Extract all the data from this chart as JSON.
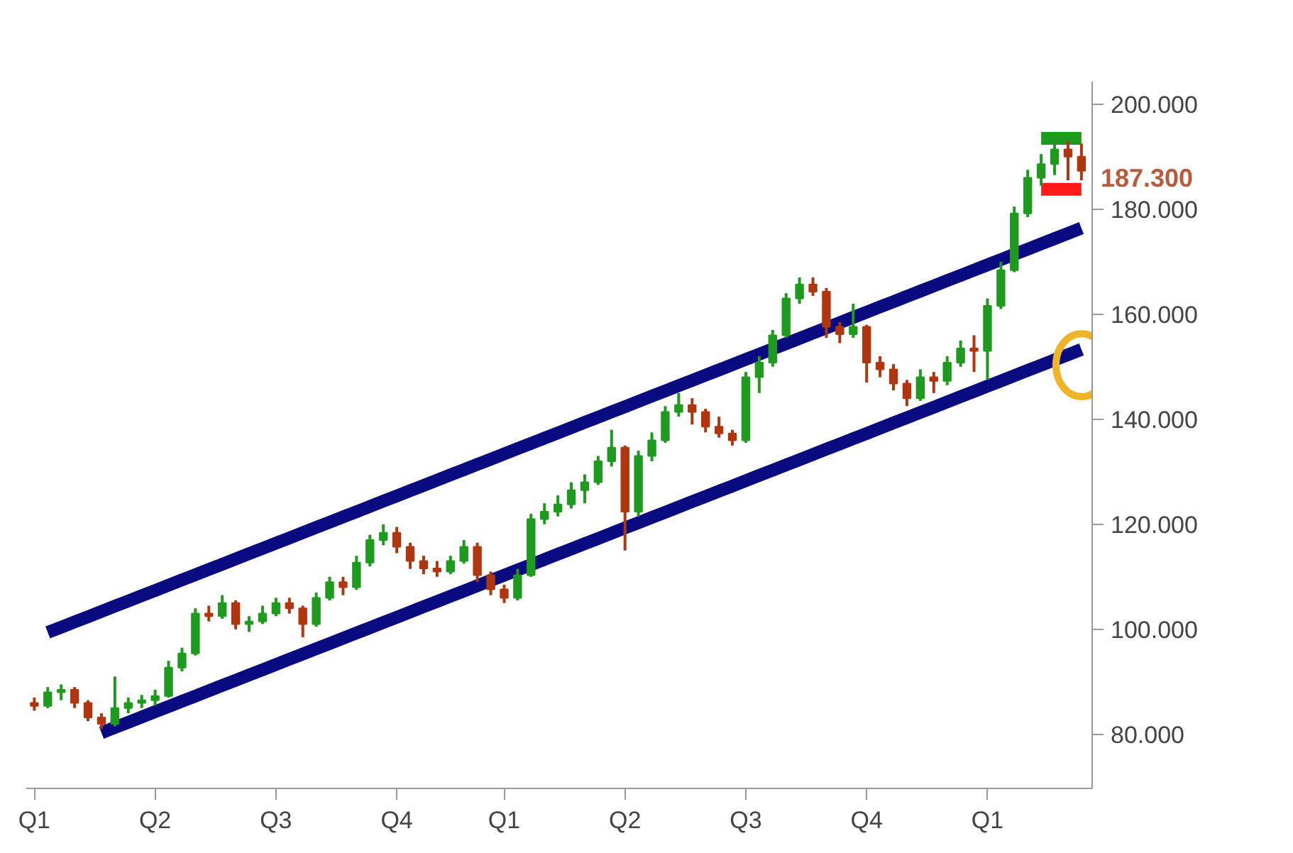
{
  "chart_data": {
    "type": "candlestick",
    "categories": [
      "Q1",
      null,
      null,
      null,
      null,
      null,
      null,
      null,
      null,
      "Q2",
      null,
      null,
      null,
      null,
      null,
      null,
      null,
      null,
      "Q3",
      null,
      null,
      null,
      null,
      null,
      null,
      null,
      null,
      "Q4",
      null,
      null,
      null,
      null,
      null,
      null,
      null,
      "Q1",
      null,
      null,
      null,
      null,
      null,
      null,
      null,
      null,
      "Q2",
      null,
      null,
      null,
      null,
      null,
      null,
      null,
      null,
      "Q3",
      null,
      null,
      null,
      null,
      null,
      null,
      null,
      null,
      "Q4",
      null,
      null,
      null,
      null,
      null,
      null,
      null,
      null,
      "Q1",
      null,
      null,
      null,
      null,
      null,
      null,
      null
    ],
    "ohlc": [
      [
        86.0,
        87.0,
        84.5,
        85.4
      ],
      [
        85.4,
        89.0,
        85.0,
        88.0
      ],
      [
        88.0,
        89.5,
        86.5,
        88.5
      ],
      [
        88.5,
        89.0,
        85.0,
        86.0
      ],
      [
        86.0,
        86.5,
        82.5,
        83.2
      ],
      [
        83.2,
        84.0,
        81.0,
        82.0
      ],
      [
        82.0,
        91.0,
        81.5,
        85.0
      ],
      [
        85.0,
        87.0,
        84.0,
        86.0
      ],
      [
        86.0,
        87.5,
        85.0,
        86.5
      ],
      [
        86.5,
        88.5,
        85.5,
        87.3
      ],
      [
        87.3,
        94.0,
        87.0,
        92.7
      ],
      [
        92.7,
        96.5,
        92.0,
        95.4
      ],
      [
        95.4,
        104.0,
        95.0,
        103.0
      ],
      [
        103.0,
        104.5,
        101.5,
        102.5
      ],
      [
        102.5,
        106.5,
        102.0,
        105.0
      ],
      [
        105.0,
        105.5,
        100.0,
        101.0
      ],
      [
        101.0,
        102.5,
        99.5,
        101.5
      ],
      [
        101.5,
        104.5,
        101.0,
        103.0
      ],
      [
        103.0,
        106.0,
        102.5,
        105.0
      ],
      [
        105.0,
        106.0,
        103.0,
        104.0
      ],
      [
        104.0,
        104.5,
        98.5,
        101.0
      ],
      [
        101.0,
        107.0,
        100.5,
        106.0
      ],
      [
        106.0,
        110.0,
        105.5,
        109.0
      ],
      [
        109.0,
        110.0,
        106.5,
        108.0
      ],
      [
        108.0,
        114.0,
        107.5,
        112.7
      ],
      [
        112.7,
        118.0,
        112.0,
        117.0
      ],
      [
        117.0,
        120.0,
        116.0,
        118.4
      ],
      [
        118.4,
        119.5,
        114.5,
        115.7
      ],
      [
        115.7,
        116.5,
        111.5,
        113.0
      ],
      [
        113.0,
        114.0,
        110.5,
        111.6
      ],
      [
        111.6,
        113.0,
        110.0,
        111.0
      ],
      [
        111.0,
        114.0,
        110.5,
        113.0
      ],
      [
        113.0,
        117.0,
        112.5,
        115.7
      ],
      [
        115.7,
        116.5,
        109.0,
        110.3
      ],
      [
        110.3,
        111.0,
        106.5,
        107.6
      ],
      [
        107.6,
        108.5,
        105.0,
        106.0
      ],
      [
        106.0,
        111.5,
        105.5,
        110.3
      ],
      [
        110.3,
        122.0,
        110.0,
        121.0
      ],
      [
        121.0,
        124.0,
        120.0,
        122.4
      ],
      [
        122.4,
        125.5,
        121.5,
        123.8
      ],
      [
        123.8,
        128.0,
        123.0,
        126.5
      ],
      [
        126.5,
        129.5,
        124.0,
        128.0
      ],
      [
        128.0,
        133.0,
        127.5,
        132.0
      ],
      [
        132.0,
        138.0,
        131.0,
        134.6
      ],
      [
        134.6,
        135.0,
        115.0,
        122.4
      ],
      [
        122.4,
        134.0,
        121.5,
        133.0
      ],
      [
        133.0,
        137.5,
        132.0,
        136.0
      ],
      [
        136.0,
        142.5,
        135.5,
        141.4
      ],
      [
        141.4,
        145.0,
        140.5,
        142.7
      ],
      [
        142.7,
        144.0,
        139.0,
        141.4
      ],
      [
        141.4,
        142.0,
        137.5,
        138.6
      ],
      [
        138.6,
        140.5,
        136.5,
        137.3
      ],
      [
        137.3,
        138.0,
        135.0,
        136.0
      ],
      [
        136.0,
        149.0,
        135.5,
        148.0
      ],
      [
        148.0,
        152.0,
        145.0,
        150.8
      ],
      [
        150.8,
        157.0,
        150.0,
        156.0
      ],
      [
        156.0,
        164.0,
        155.5,
        163.0
      ],
      [
        163.0,
        167.0,
        162.0,
        165.7
      ],
      [
        165.7,
        167.0,
        163.5,
        164.3
      ],
      [
        164.3,
        165.0,
        155.5,
        157.6
      ],
      [
        157.6,
        158.5,
        154.5,
        156.2
      ],
      [
        156.2,
        162.0,
        155.5,
        157.6
      ],
      [
        157.6,
        158.0,
        147.0,
        150.8
      ],
      [
        150.8,
        152.0,
        148.0,
        149.5
      ],
      [
        149.5,
        150.5,
        145.5,
        146.8
      ],
      [
        146.8,
        147.5,
        142.5,
        144.0
      ],
      [
        144.0,
        149.5,
        143.5,
        148.0
      ],
      [
        148.0,
        149.0,
        145.0,
        147.3
      ],
      [
        147.3,
        152.0,
        146.5,
        150.8
      ],
      [
        150.8,
        155.0,
        150.0,
        153.5
      ],
      [
        153.5,
        156.0,
        149.0,
        153.0
      ],
      [
        153.0,
        163.0,
        147.5,
        161.6
      ],
      [
        161.6,
        170.0,
        161.0,
        168.4
      ],
      [
        168.4,
        180.5,
        168.0,
        179.2
      ],
      [
        179.2,
        187.5,
        178.5,
        186.0
      ],
      [
        186.0,
        190.5,
        184.5,
        188.6
      ],
      [
        188.6,
        193.0,
        186.5,
        191.4
      ],
      [
        191.4,
        193.0,
        185.5,
        190.0
      ],
      [
        190.0,
        192.5,
        185.5,
        187.3
      ]
    ],
    "colors": [
      "#b0360f",
      "#1e9b1e",
      "#1e9b1e",
      "#b0360f",
      "#b0360f",
      "#b0360f",
      "#1e9b1e",
      "#1e9b1e",
      "#1e9b1e",
      "#1e9b1e",
      "#1e9b1e",
      "#1e9b1e",
      "#1e9b1e",
      "#b0360f",
      "#1e9b1e",
      "#b0360f",
      "#1e9b1e",
      "#1e9b1e",
      "#1e9b1e",
      "#b0360f",
      "#b0360f",
      "#1e9b1e",
      "#1e9b1e",
      "#b0360f",
      "#1e9b1e",
      "#1e9b1e",
      "#1e9b1e",
      "#b0360f",
      "#b0360f",
      "#b0360f",
      "#b0360f",
      "#1e9b1e",
      "#1e9b1e",
      "#b0360f",
      "#b0360f",
      "#b0360f",
      "#1e9b1e",
      "#1e9b1e",
      "#1e9b1e",
      "#1e9b1e",
      "#1e9b1e",
      "#1e9b1e",
      "#1e9b1e",
      "#1e9b1e",
      "#b0360f",
      "#1e9b1e",
      "#1e9b1e",
      "#1e9b1e",
      "#1e9b1e",
      "#b0360f",
      "#b0360f",
      "#b0360f",
      "#b0360f",
      "#1e9b1e",
      "#1e9b1e",
      "#1e9b1e",
      "#1e9b1e",
      "#1e9b1e",
      "#b0360f",
      "#b0360f",
      "#b0360f",
      "#1e9b1e",
      "#b0360f",
      "#b0360f",
      "#b0360f",
      "#b0360f",
      "#1e9b1e",
      "#b0360f",
      "#1e9b1e",
      "#1e9b1e",
      "#b0360f",
      "#1e9b1e",
      "#1e9b1e",
      "#1e9b1e",
      "#1e9b1e",
      "#1e9b1e",
      "#1e9b1e",
      "#b0360f",
      "#b0360f"
    ],
    "series": [
      {
        "type": "line",
        "color": "#0a0a80",
        "values": [
          null,
          99.4,
          100.4,
          101.4,
          102.4,
          103.4,
          104.4,
          105.4,
          106.4,
          107.4,
          108.4,
          109.4,
          110.4,
          111.4,
          112.4,
          113.4,
          114.4,
          115.4,
          116.4,
          117.4,
          118.4,
          119.4,
          120.4,
          121.4,
          122.4,
          123.4,
          124.4,
          125.4,
          126.4,
          127.4,
          128.4,
          129.4,
          130.4,
          131.4,
          132.4,
          133.4,
          134.4,
          135.4,
          136.4,
          137.4,
          138.4,
          139.4,
          140.4,
          141.4,
          142.4,
          143.4,
          144.4,
          145.4,
          146.4,
          147.4,
          148.4,
          149.4,
          150.4,
          151.4,
          152.4,
          153.4,
          154.4,
          155.4,
          156.4,
          157.4,
          158.4,
          159.4,
          160.4,
          161.4,
          162.4,
          163.4,
          164.4,
          165.4,
          166.4,
          167.4,
          168.4,
          169.4,
          170.4,
          171.4,
          172.4,
          173.4,
          174.4,
          175.4,
          176.4
        ]
      },
      {
        "type": "line",
        "color": "#0a0a80",
        "values": [
          null,
          null,
          null,
          null,
          null,
          80.3,
          81.3,
          82.3,
          83.3,
          84.3,
          85.3,
          86.3,
          87.3,
          88.3,
          89.3,
          90.3,
          91.3,
          92.3,
          93.3,
          94.3,
          95.3,
          96.3,
          97.3,
          98.3,
          99.3,
          100.3,
          101.3,
          102.3,
          103.3,
          104.3,
          105.3,
          106.3,
          107.3,
          108.3,
          109.3,
          110.3,
          111.3,
          112.3,
          113.3,
          114.3,
          115.3,
          116.3,
          117.3,
          118.3,
          119.3,
          120.3,
          121.3,
          122.3,
          123.3,
          124.3,
          125.3,
          126.3,
          127.3,
          128.3,
          129.3,
          130.3,
          131.3,
          132.3,
          133.3,
          134.3,
          135.3,
          136.3,
          137.3,
          138.3,
          139.3,
          140.3,
          141.3,
          142.3,
          143.3,
          144.3,
          145.3,
          146.3,
          147.3,
          148.3,
          149.3,
          150.3,
          151.3,
          152.3,
          153.3
        ]
      },
      {
        "type": "line",
        "color": "#1e9b1e",
        "values": [
          null,
          null,
          null,
          null,
          null,
          null,
          null,
          null,
          null,
          null,
          null,
          null,
          null,
          null,
          null,
          null,
          null,
          null,
          null,
          null,
          null,
          null,
          null,
          null,
          null,
          null,
          null,
          null,
          null,
          null,
          null,
          null,
          null,
          null,
          null,
          null,
          null,
          null,
          null,
          null,
          null,
          null,
          null,
          null,
          null,
          null,
          null,
          null,
          null,
          null,
          null,
          null,
          null,
          null,
          null,
          null,
          null,
          null,
          null,
          null,
          null,
          null,
          null,
          null,
          null,
          null,
          null,
          null,
          null,
          null,
          null,
          null,
          null,
          null,
          null,
          193.5,
          193.5,
          193.5,
          193.5
        ]
      },
      {
        "type": "line",
        "color": "#ff1a1a",
        "values": [
          null,
          null,
          null,
          null,
          null,
          null,
          null,
          null,
          null,
          null,
          null,
          null,
          null,
          null,
          null,
          null,
          null,
          null,
          null,
          null,
          null,
          null,
          null,
          null,
          null,
          null,
          null,
          null,
          null,
          null,
          null,
          null,
          null,
          null,
          null,
          null,
          null,
          null,
          null,
          null,
          null,
          null,
          null,
          null,
          null,
          null,
          null,
          null,
          null,
          null,
          null,
          null,
          null,
          null,
          null,
          null,
          null,
          null,
          null,
          null,
          null,
          null,
          null,
          null,
          null,
          null,
          null,
          null,
          null,
          null,
          null,
          null,
          null,
          null,
          null,
          183.8,
          183.8,
          183.8,
          183.8
        ]
      }
    ],
    "annotations": [
      "187.300"
    ],
    "ylim": [
      69.7,
      204.3
    ],
    "yticks": [
      {
        "value": 80,
        "label": "80.000"
      },
      {
        "value": 100,
        "label": "100.000"
      },
      {
        "value": 120,
        "label": "120.000"
      },
      {
        "value": 140,
        "label": "140.000"
      },
      {
        "value": 160,
        "label": "160.000"
      },
      {
        "value": 180,
        "label": "180.000"
      },
      {
        "value": 200,
        "label": "200.000"
      }
    ]
  }
}
